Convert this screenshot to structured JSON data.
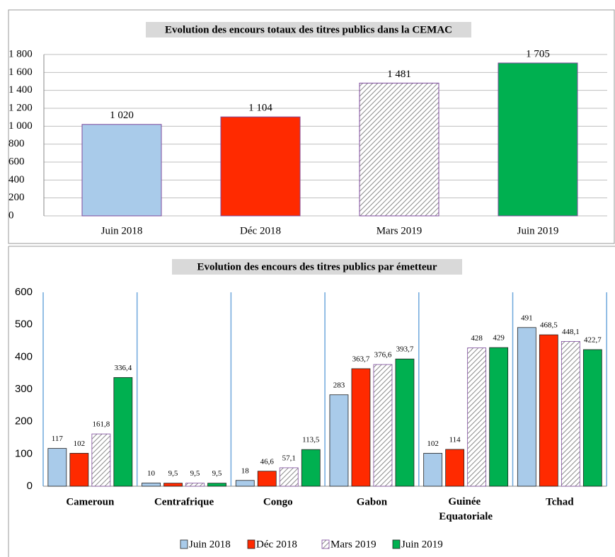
{
  "chart_data": [
    {
      "type": "bar",
      "title": "Evolution des encours totaux des titres publics dans la CEMAC",
      "categories": [
        "Juin 2018",
        "Déc 2018",
        "Mars 2019",
        "Juin 2019"
      ],
      "values": [
        1020,
        1104,
        1481,
        1705
      ],
      "value_labels": [
        "1 020",
        "1 104",
        "1 481",
        "1 705"
      ],
      "colors": [
        "#a9cbea",
        "#ff2a00",
        "hatch",
        "#00b050"
      ],
      "ylim": [
        0,
        1800
      ],
      "yticks": [
        0,
        200,
        400,
        600,
        800,
        {
          "value": 1000,
          "label": "1 000"
        },
        {
          "value": 1200,
          "label": "1 200"
        },
        {
          "value": 1400,
          "label": "1 400"
        },
        {
          "value": 1600,
          "label": "1 600"
        },
        {
          "value": 1800,
          "label": "1 800"
        }
      ],
      "grid": true
    },
    {
      "type": "grouped-bar",
      "title": "Evolution des encours des titres publics par émetteur",
      "categories": [
        "Cameroun",
        "Centrafrique",
        "Congo",
        "Gabon",
        "Guinée Equatoriale",
        "Tchad"
      ],
      "series": [
        {
          "name": "Juin 2018",
          "color": "#a9cbea",
          "values": [
            117,
            10,
            18,
            283,
            102,
            491
          ],
          "value_labels": [
            "117",
            "10",
            "18",
            "283",
            "102",
            "491"
          ]
        },
        {
          "name": "Déc 2018",
          "color": "#ff2a00",
          "values": [
            102,
            9.5,
            46.6,
            363.7,
            114,
            468.5
          ],
          "value_labels": [
            "102",
            "9,5",
            "46,6",
            "363,7",
            "114",
            "468,5"
          ]
        },
        {
          "name": "Mars 2019",
          "color": "hatch",
          "values": [
            161.8,
            9.5,
            57.1,
            376.6,
            428,
            448.1
          ],
          "value_labels": [
            "161,8",
            "9,5",
            "57,1",
            "376,6",
            "428",
            "448,1"
          ]
        },
        {
          "name": "Juin 2019",
          "color": "#00b050",
          "values": [
            336.4,
            9.5,
            113.5,
            393.7,
            429,
            422.7
          ],
          "value_labels": [
            "336,4",
            "9,5",
            "113,5",
            "393,7",
            "429",
            "422,7"
          ]
        }
      ],
      "ylim": [
        0,
        600
      ],
      "yticks": [
        0,
        100,
        200,
        300,
        400,
        500,
        600
      ],
      "grid": false
    }
  ]
}
